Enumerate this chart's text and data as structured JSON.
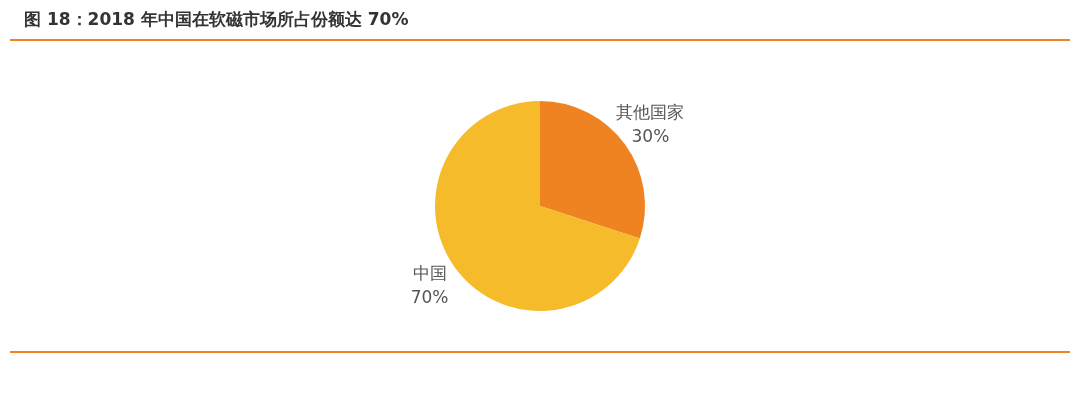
{
  "chart_data": {
    "type": "pie",
    "title": "图 18：2018 年中国在软磁市场所占份额达 70%",
    "categories": [
      "其他国家",
      "中国"
    ],
    "values": [
      30,
      70
    ],
    "colors": [
      "#ef8322",
      "#f5bb2b"
    ],
    "value_labels": [
      "30%",
      "70%"
    ],
    "legend": false
  }
}
